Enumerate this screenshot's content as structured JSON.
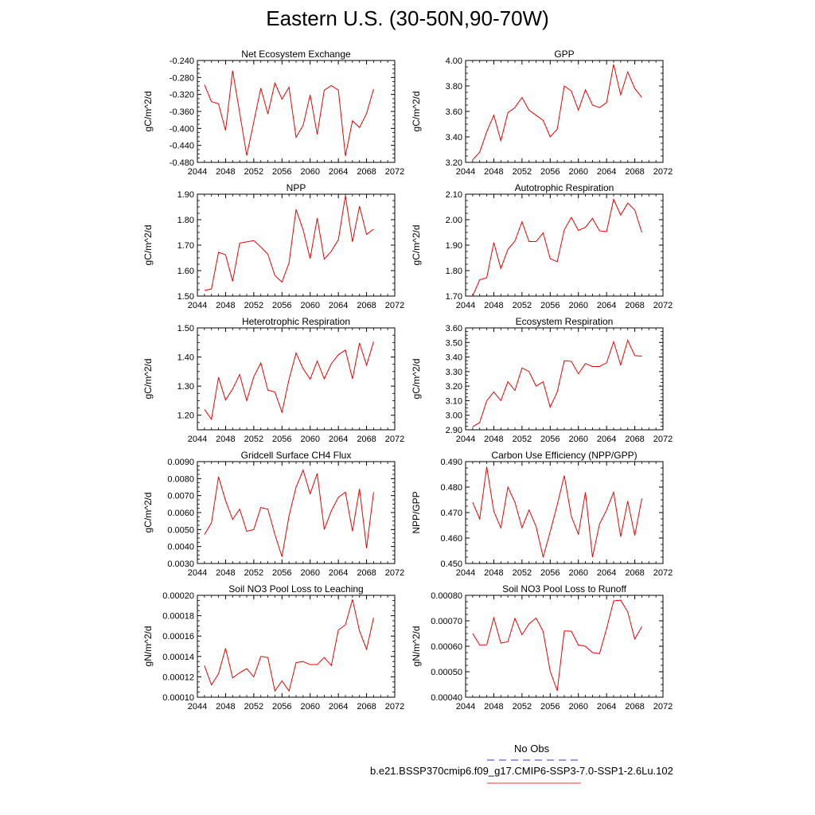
{
  "title": "Eastern U.S. (30-50N,90-70W)",
  "legend": {
    "items": [
      {
        "label": "No Obs",
        "color": "#3333cc",
        "style": "dashed"
      },
      {
        "label": "b.e21.BSSP370cmip6.f09_g17.CMIP6-SSP3-7.0-SSP1-2.6Lu.102",
        "color": "#ee3333",
        "style": "solid"
      }
    ]
  },
  "chart_data": [
    {
      "type": "line",
      "title": "Net Ecosystem Exchange",
      "ylabel": "gC/m^2/d",
      "xlim": [
        2044,
        2072
      ],
      "ylim": [
        -0.48,
        -0.24
      ],
      "xticks": [
        "2044",
        "2048",
        "2052",
        "2056",
        "2060",
        "2064",
        "2068",
        "2072"
      ],
      "yticks": [
        "-0.480",
        "-0.440",
        "-0.400",
        "-0.360",
        "-0.320",
        "-0.280",
        "-0.240"
      ],
      "x": [
        2045,
        2046,
        2047,
        2048,
        2049,
        2050,
        2051,
        2052,
        2053,
        2054,
        2055,
        2056,
        2057,
        2058,
        2059,
        2060,
        2061,
        2062,
        2063,
        2064,
        2065,
        2066,
        2067,
        2068,
        2069
      ],
      "series": [
        {
          "color": "#ee0000",
          "values": [
            -0.297,
            -0.337,
            -0.342,
            -0.405,
            -0.264,
            -0.363,
            -0.464,
            -0.385,
            -0.305,
            -0.366,
            -0.293,
            -0.331,
            -0.303,
            -0.421,
            -0.393,
            -0.321,
            -0.414,
            -0.31,
            -0.299,
            -0.31,
            -0.465,
            -0.382,
            -0.398,
            -0.365,
            -0.307
          ]
        }
      ]
    },
    {
      "type": "line",
      "title": "GPP",
      "ylabel": "gC/m^2/d",
      "xlim": [
        2044,
        2072
      ],
      "ylim": [
        3.2,
        4.0
      ],
      "xticks": [
        "2044",
        "2048",
        "2052",
        "2056",
        "2060",
        "2064",
        "2068",
        "2072"
      ],
      "yticks": [
        "3.20",
        "3.40",
        "3.60",
        "3.80",
        "4.00"
      ],
      "x": [
        2045,
        2046,
        2047,
        2048,
        2049,
        2050,
        2051,
        2052,
        2053,
        2054,
        2055,
        2056,
        2057,
        2058,
        2059,
        2060,
        2061,
        2062,
        2063,
        2064,
        2065,
        2066,
        2067,
        2068,
        2069
      ],
      "series": [
        {
          "color": "#ee0000",
          "values": [
            3.22,
            3.28,
            3.44,
            3.57,
            3.37,
            3.59,
            3.63,
            3.71,
            3.61,
            3.57,
            3.53,
            3.4,
            3.46,
            3.8,
            3.76,
            3.61,
            3.77,
            3.65,
            3.63,
            3.67,
            3.97,
            3.73,
            3.91,
            3.78,
            3.71
          ]
        }
      ]
    },
    {
      "type": "line",
      "title": "NPP",
      "ylabel": "gC/m^2/d",
      "xlim": [
        2044,
        2072
      ],
      "ylim": [
        1.5,
        1.9
      ],
      "xticks": [
        "2044",
        "2048",
        "2052",
        "2056",
        "2060",
        "2064",
        "2068",
        "2072"
      ],
      "yticks": [
        "1.50",
        "1.60",
        "1.70",
        "1.80",
        "1.90"
      ],
      "x": [
        2045,
        2046,
        2047,
        2048,
        2049,
        2050,
        2051,
        2052,
        2053,
        2054,
        2055,
        2056,
        2057,
        2058,
        2059,
        2060,
        2061,
        2062,
        2063,
        2064,
        2065,
        2066,
        2067,
        2068,
        2069
      ],
      "series": [
        {
          "color": "#ee0000",
          "values": [
            1.522,
            1.528,
            1.672,
            1.662,
            1.558,
            1.708,
            1.713,
            1.718,
            1.693,
            1.664,
            1.58,
            1.555,
            1.63,
            1.84,
            1.76,
            1.647,
            1.806,
            1.645,
            1.676,
            1.721,
            1.894,
            1.713,
            1.853,
            1.742,
            1.763
          ]
        }
      ]
    },
    {
      "type": "line",
      "title": "Autotrophic Respiration",
      "ylabel": "gC/m^2/d",
      "xlim": [
        2044,
        2072
      ],
      "ylim": [
        1.7,
        2.1
      ],
      "xticks": [
        "2044",
        "2048",
        "2052",
        "2056",
        "2060",
        "2064",
        "2068",
        "2072"
      ],
      "yticks": [
        "1.70",
        "1.80",
        "1.90",
        "2.00",
        "2.10"
      ],
      "x": [
        2045,
        2046,
        2047,
        2048,
        2049,
        2050,
        2051,
        2052,
        2053,
        2054,
        2055,
        2056,
        2057,
        2058,
        2059,
        2060,
        2061,
        2062,
        2063,
        2064,
        2065,
        2066,
        2067,
        2068,
        2069
      ],
      "series": [
        {
          "color": "#ee0000",
          "values": [
            1.7,
            1.764,
            1.772,
            1.91,
            1.808,
            1.883,
            1.916,
            1.992,
            1.914,
            1.914,
            1.948,
            1.847,
            1.835,
            1.96,
            2.009,
            1.958,
            1.97,
            2.005,
            1.956,
            1.953,
            2.08,
            2.018,
            2.065,
            2.038,
            1.95
          ]
        }
      ]
    },
    {
      "type": "line",
      "title": "Heterotrophic Respiration",
      "ylabel": "gC/m^2/d",
      "xlim": [
        2044,
        2072
      ],
      "ylim": [
        1.15,
        1.5
      ],
      "xticks": [
        "2044",
        "2048",
        "2052",
        "2056",
        "2060",
        "2064",
        "2068",
        "2072"
      ],
      "yticks": [
        "1.20",
        "1.30",
        "1.40",
        "1.50"
      ],
      "x": [
        2045,
        2046,
        2047,
        2048,
        2049,
        2050,
        2051,
        2052,
        2053,
        2054,
        2055,
        2056,
        2057,
        2058,
        2059,
        2060,
        2061,
        2062,
        2063,
        2064,
        2065,
        2066,
        2067,
        2068,
        2069
      ],
      "series": [
        {
          "color": "#ee0000",
          "values": [
            1.22,
            1.186,
            1.33,
            1.252,
            1.29,
            1.34,
            1.25,
            1.332,
            1.38,
            1.286,
            1.28,
            1.21,
            1.323,
            1.414,
            1.36,
            1.324,
            1.386,
            1.325,
            1.377,
            1.408,
            1.424,
            1.325,
            1.448,
            1.372,
            1.453
          ]
        }
      ]
    },
    {
      "type": "line",
      "title": "Ecosystem Respiration",
      "ylabel": "gC/m^2/d",
      "xlim": [
        2044,
        2072
      ],
      "ylim": [
        2.9,
        3.6
      ],
      "xticks": [
        "2044",
        "2048",
        "2052",
        "2056",
        "2060",
        "2064",
        "2068",
        "2072"
      ],
      "yticks": [
        "2.90",
        "3.00",
        "3.10",
        "3.20",
        "3.30",
        "3.40",
        "3.50",
        "3.60"
      ],
      "x": [
        2045,
        2046,
        2047,
        2048,
        2049,
        2050,
        2051,
        2052,
        2053,
        2054,
        2055,
        2056,
        2057,
        2058,
        2059,
        2060,
        2061,
        2062,
        2063,
        2064,
        2065,
        2066,
        2067,
        2068,
        2069
      ],
      "series": [
        {
          "color": "#ee0000",
          "values": [
            2.92,
            2.95,
            3.1,
            3.16,
            3.1,
            3.23,
            3.17,
            3.325,
            3.3,
            3.2,
            3.23,
            3.055,
            3.16,
            3.375,
            3.37,
            3.285,
            3.355,
            3.335,
            3.335,
            3.36,
            3.505,
            3.345,
            3.515,
            3.41,
            3.405
          ]
        }
      ]
    },
    {
      "type": "line",
      "title": "Gridcell Surface CH4 Flux",
      "ylabel": "gC/m^2/d",
      "xlim": [
        2044,
        2072
      ],
      "ylim": [
        0.003,
        0.009
      ],
      "xticks": [
        "2044",
        "2048",
        "2052",
        "2056",
        "2060",
        "2064",
        "2068",
        "2072"
      ],
      "yticks": [
        "0.0030",
        "0.0040",
        "0.0050",
        "0.0060",
        "0.0070",
        "0.0080",
        "0.0090"
      ],
      "x": [
        2045,
        2046,
        2047,
        2048,
        2049,
        2050,
        2051,
        2052,
        2053,
        2054,
        2055,
        2056,
        2057,
        2058,
        2059,
        2060,
        2061,
        2062,
        2063,
        2064,
        2065,
        2066,
        2067,
        2068,
        2069
      ],
      "series": [
        {
          "color": "#ee0000",
          "values": [
            0.0047,
            0.0054,
            0.0081,
            0.0067,
            0.0056,
            0.0062,
            0.0049,
            0.005,
            0.0063,
            0.0062,
            0.0047,
            0.0034,
            0.0058,
            0.0075,
            0.0085,
            0.0071,
            0.0083,
            0.005,
            0.0061,
            0.0069,
            0.0072,
            0.0049,
            0.0074,
            0.0039,
            0.0072
          ]
        }
      ]
    },
    {
      "type": "line",
      "title": "Carbon Use Efficiency (NPP/GPP)",
      "ylabel": "NPP/GPP",
      "xlim": [
        2044,
        2072
      ],
      "ylim": [
        0.45,
        0.49
      ],
      "xticks": [
        "2044",
        "2048",
        "2052",
        "2056",
        "2060",
        "2064",
        "2068",
        "2072"
      ],
      "yticks": [
        "0.450",
        "0.460",
        "0.470",
        "0.480",
        "0.490"
      ],
      "x": [
        2045,
        2046,
        2047,
        2048,
        2049,
        2050,
        2051,
        2052,
        2053,
        2054,
        2055,
        2056,
        2057,
        2058,
        2059,
        2060,
        2061,
        2062,
        2063,
        2064,
        2065,
        2066,
        2067,
        2068,
        2069
      ],
      "series": [
        {
          "color": "#ee0000",
          "values": [
            0.474,
            0.4675,
            0.488,
            0.4705,
            0.464,
            0.48,
            0.474,
            0.464,
            0.471,
            0.4645,
            0.4525,
            0.4625,
            0.473,
            0.4845,
            0.4685,
            0.4615,
            0.478,
            0.4525,
            0.4655,
            0.471,
            0.478,
            0.4605,
            0.4745,
            0.461,
            0.4755
          ]
        }
      ]
    },
    {
      "type": "line",
      "title": "Soil NO3 Pool Loss to Leaching",
      "ylabel": "gN/m^2/d",
      "xlim": [
        2044,
        2072
      ],
      "ylim": [
        0.0001,
        0.0002
      ],
      "xticks": [
        "2044",
        "2048",
        "2052",
        "2056",
        "2060",
        "2064",
        "2068",
        "2072"
      ],
      "yticks": [
        "0.00010",
        "0.00012",
        "0.00014",
        "0.00016",
        "0.00018",
        "0.00020"
      ],
      "x": [
        2045,
        2046,
        2047,
        2048,
        2049,
        2050,
        2051,
        2052,
        2053,
        2054,
        2055,
        2056,
        2057,
        2058,
        2059,
        2060,
        2061,
        2062,
        2063,
        2064,
        2065,
        2066,
        2067,
        2068,
        2069
      ],
      "series": [
        {
          "color": "#ee0000",
          "values": [
            0.000131,
            0.000112,
            0.000123,
            0.000148,
            0.000119,
            0.000124,
            0.000128,
            0.00012,
            0.00014,
            0.000139,
            0.000106,
            0.000116,
            0.000106,
            0.000134,
            0.000135,
            0.000132,
            0.000132,
            0.000139,
            0.000131,
            0.000166,
            0.000171,
            0.000196,
            0.000165,
            0.000147,
            0.000178
          ]
        }
      ]
    },
    {
      "type": "line",
      "title": "Soil NO3 Pool Loss to Runoff",
      "ylabel": "gN/m^2/d",
      "xlim": [
        2044,
        2072
      ],
      "ylim": [
        0.0004,
        0.0008
      ],
      "xticks": [
        "2044",
        "2048",
        "2052",
        "2056",
        "2060",
        "2064",
        "2068",
        "2072"
      ],
      "yticks": [
        "0.00040",
        "0.00050",
        "0.00060",
        "0.00070",
        "0.00080"
      ],
      "x": [
        2045,
        2046,
        2047,
        2048,
        2049,
        2050,
        2051,
        2052,
        2053,
        2054,
        2055,
        2056,
        2057,
        2058,
        2059,
        2060,
        2061,
        2062,
        2063,
        2064,
        2065,
        2066,
        2067,
        2068,
        2069
      ],
      "series": [
        {
          "color": "#ee0000",
          "values": [
            0.00065,
            0.000605,
            0.000606,
            0.000712,
            0.000612,
            0.000618,
            0.00071,
            0.000645,
            0.000688,
            0.000711,
            0.000658,
            0.000502,
            0.000425,
            0.00066,
            0.000659,
            0.000605,
            0.0006,
            0.000575,
            0.000571,
            0.000669,
            0.000778,
            0.000781,
            0.000735,
            0.000628,
            0.000677
          ]
        }
      ]
    }
  ]
}
